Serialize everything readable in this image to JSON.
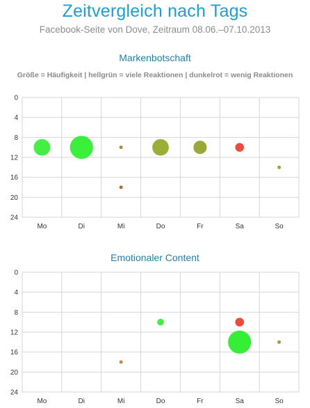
{
  "header": {
    "title": "Zeitvergleich nach Tags",
    "subtitle": "Facebook-Seite von Dove, Zeitraum 08.06.–07.10.2013",
    "legend_note": "Größe = Häufigkeit | hellgrün = viele Reaktionen | dunkelrot = wenig Reaktionen"
  },
  "chart_data": [
    {
      "type": "scatter",
      "title": "Markenbotschaft",
      "categories": [
        "Mo",
        "Di",
        "Mi",
        "Do",
        "Fr",
        "Sa",
        "So"
      ],
      "yticks": [
        0,
        4,
        8,
        12,
        16,
        20,
        24
      ],
      "ylim": [
        0,
        24
      ],
      "y_inverted": true,
      "grid": true,
      "points": [
        {
          "x": "Mo",
          "y": 10,
          "size": 3,
          "color": "#44ee44"
        },
        {
          "x": "Di",
          "y": 10,
          "size": 4,
          "color": "#3af03a"
        },
        {
          "x": "Mi",
          "y": 10,
          "size": 1,
          "color": "#a88a3a"
        },
        {
          "x": "Mi",
          "y": 18,
          "size": 1,
          "color": "#c2603a"
        },
        {
          "x": "Do",
          "y": 10,
          "size": 3,
          "color": "#9aae38"
        },
        {
          "x": "Fr",
          "y": 10,
          "size": 2.5,
          "color": "#9aa838"
        },
        {
          "x": "Sa",
          "y": 10,
          "size": 1.8,
          "color": "#f04a3a"
        },
        {
          "x": "So",
          "y": 14,
          "size": 1,
          "color": "#92a83a"
        }
      ]
    },
    {
      "type": "scatter",
      "title": "Emotionaler Content",
      "categories": [
        "Mo",
        "Di",
        "Mi",
        "Do",
        "Fr",
        "Sa",
        "So"
      ],
      "yticks": [
        0,
        4,
        8,
        12,
        16,
        20,
        24
      ],
      "ylim": [
        0,
        24
      ],
      "y_inverted": true,
      "grid": true,
      "points": [
        {
          "x": "Mi",
          "y": 18,
          "size": 1,
          "color": "#c68a3a"
        },
        {
          "x": "Do",
          "y": 10,
          "size": 1.5,
          "color": "#44ee44"
        },
        {
          "x": "Sa",
          "y": 10,
          "size": 1.8,
          "color": "#f04a3a"
        },
        {
          "x": "Sa",
          "y": 14,
          "size": 4,
          "color": "#36ee36"
        },
        {
          "x": "So",
          "y": 14,
          "size": 1,
          "color": "#a09a3a"
        }
      ]
    }
  ]
}
